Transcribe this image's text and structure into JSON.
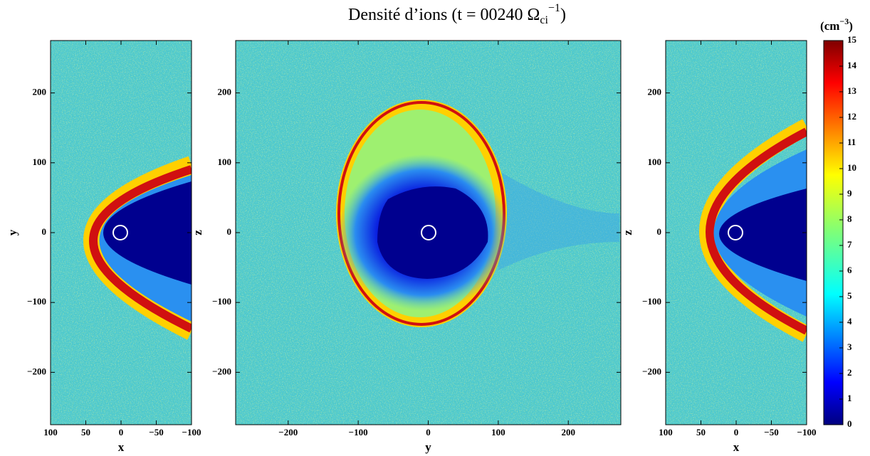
{
  "title": {
    "text": "Densité d’ions (t = 00240 Ω",
    "sub": "ci",
    "sup": "−1",
    "close": ")"
  },
  "chart_data": [
    {
      "type": "heatmap",
      "xlabel": "x",
      "ylabel": "y",
      "xlim": [
        100,
        -100
      ],
      "ylim": [
        -275,
        275
      ],
      "xticks": [
        100,
        50,
        0,
        {
          "value": -50,
          "label": "−50"
        },
        {
          "value": -100,
          "label": "−100"
        }
      ],
      "yticks": [
        {
          "value": -200,
          "label": "−200"
        },
        {
          "value": -100,
          "label": "−100"
        },
        0,
        100,
        200
      ]
    },
    {
      "type": "heatmap",
      "xlabel": "y",
      "ylabel": "z",
      "xlim": [
        -275,
        275
      ],
      "ylim": [
        -275,
        275
      ],
      "xticks": [
        {
          "value": -200,
          "label": "−200"
        },
        {
          "value": -100,
          "label": "−100"
        },
        0,
        100,
        200
      ],
      "yticks": [
        {
          "value": -200,
          "label": "−200"
        },
        {
          "value": -100,
          "label": "−100"
        },
        0,
        100,
        200
      ]
    },
    {
      "type": "heatmap",
      "xlabel": "x",
      "ylabel": "z",
      "xlim": [
        100,
        -100
      ],
      "ylim": [
        -275,
        275
      ],
      "xticks": [
        100,
        50,
        0,
        {
          "value": -50,
          "label": "−50"
        },
        {
          "value": -100,
          "label": "−100"
        }
      ],
      "yticks": [
        {
          "value": -200,
          "label": "−200"
        },
        {
          "value": -100,
          "label": "−100"
        },
        0,
        100,
        200
      ]
    }
  ],
  "colorbar": {
    "label": {
      "open": "(cm",
      "sup": "−3",
      "close": ")"
    },
    "lim": [
      0,
      15
    ],
    "ticks": [
      0,
      1,
      2,
      3,
      4,
      5,
      6,
      7,
      8,
      9,
      10,
      11,
      12,
      13,
      14,
      15
    ]
  }
}
